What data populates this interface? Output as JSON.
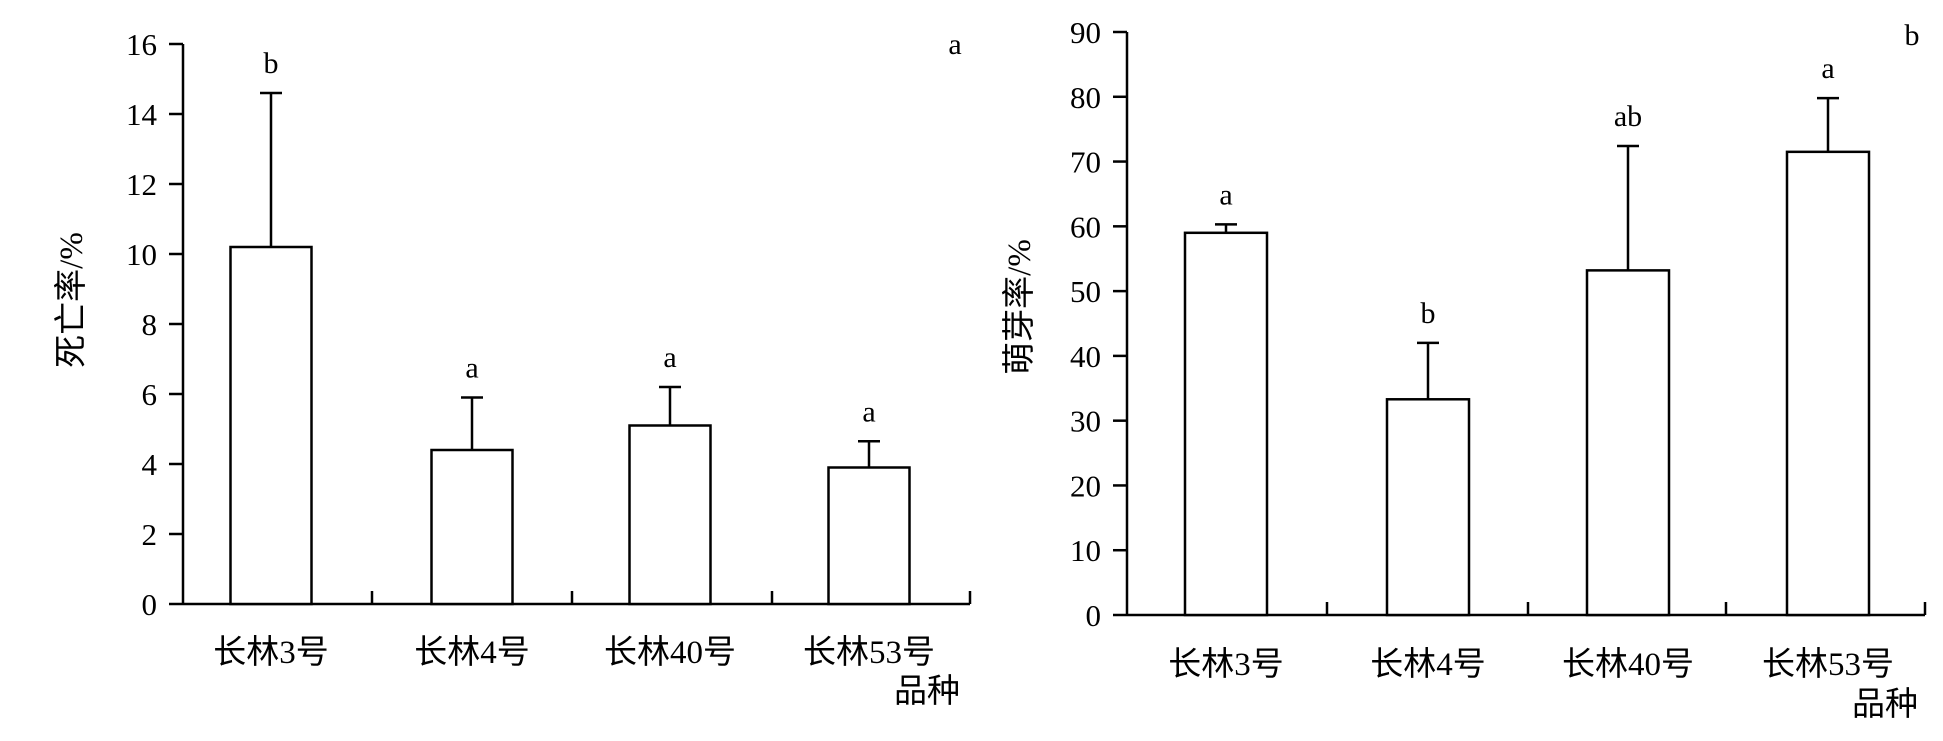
{
  "chart_data": [
    {
      "type": "bar",
      "panel": "a",
      "categories": [
        "长林3号",
        "长林4号",
        "长林40号",
        "长林53号"
      ],
      "values": [
        10.2,
        4.4,
        5.1,
        3.9
      ],
      "error": [
        4.4,
        1.5,
        1.1,
        0.75
      ],
      "significance": [
        "b",
        "a",
        "a",
        "a"
      ],
      "ylabel": "死亡率/%",
      "xlabel": "品种",
      "ylim": [
        0,
        16
      ],
      "yticks": [
        0,
        2,
        4,
        6,
        8,
        10,
        12,
        14,
        16
      ],
      "grid": false
    },
    {
      "type": "bar",
      "panel": "b",
      "categories": [
        "长林3号",
        "长林4号",
        "长林40号",
        "长林53号"
      ],
      "values": [
        59,
        33.3,
        53.2,
        71.5
      ],
      "error": [
        1.3,
        8.7,
        19.2,
        8.3
      ],
      "significance": [
        "a",
        "b",
        "ab",
        "a"
      ],
      "ylabel": "萌芽率/%",
      "xlabel": "品种",
      "ylim": [
        0,
        90
      ],
      "yticks": [
        0,
        10,
        20,
        30,
        40,
        50,
        60,
        70,
        80,
        90
      ],
      "grid": false
    }
  ]
}
